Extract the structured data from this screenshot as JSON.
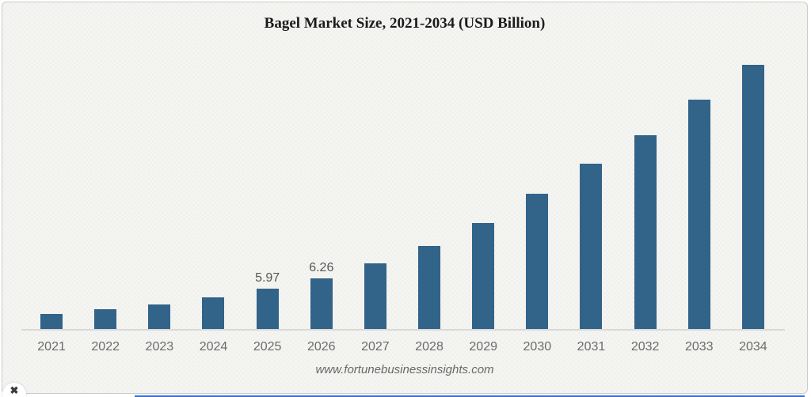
{
  "title": "Bagel Market Size, 2021-2034 (USD Billion)",
  "watermark": "www.fortunebusinessinsights.com",
  "close_button": {
    "glyph": "✖"
  },
  "colors": {
    "bar": "#326389",
    "axis_line": "#d9d9d9",
    "tick_text": "#6b6b6b",
    "label_text": "#565656",
    "background": "#f5f5f3",
    "bottom_accent": "#3a70c8"
  },
  "chart_data": {
    "type": "bar",
    "title": "Bagel Market Size, 2021-2034 (USD Billion)",
    "categories": [
      "2021",
      "2022",
      "2023",
      "2024",
      "2025",
      "2026",
      "2027",
      "2028",
      "2029",
      "2030",
      "2031",
      "2032",
      "2033",
      "2034"
    ],
    "values": [
      5.26,
      5.39,
      5.52,
      5.72,
      5.97,
      6.26,
      6.68,
      7.17,
      7.82,
      8.65,
      9.49,
      10.3,
      11.3,
      12.28
    ],
    "data_labels": {
      "2025": "5.97",
      "2026": "6.26"
    },
    "xlabel": "",
    "ylabel": "USD Billion",
    "ylim": [
      4.83,
      12.75
    ],
    "grid": false,
    "legend": false,
    "source_text": "www.fortunebusinessinsights.com"
  }
}
